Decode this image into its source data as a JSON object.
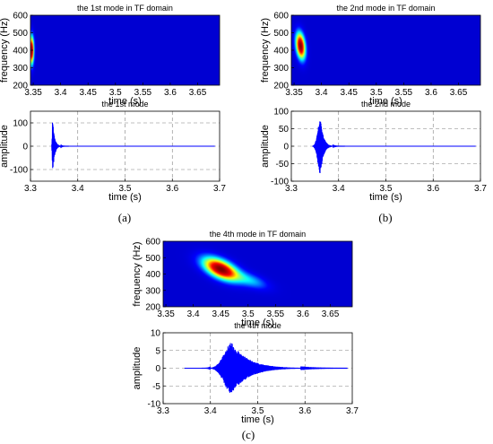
{
  "chart_data": [
    {
      "id": "a_tf",
      "type": "heatmap",
      "title": "the 1st mode in TF domain",
      "xlabel": "time (s)",
      "ylabel": "frequency (Hz)",
      "xlim": [
        3.345,
        3.69
      ],
      "ylim": [
        200,
        600
      ],
      "xticks": [
        3.35,
        3.4,
        3.45,
        3.5,
        3.55,
        3.6,
        3.65
      ],
      "xtick_labels": [
        "3.35",
        "3.4",
        "3.45",
        "3.5",
        "3.55",
        "3.6",
        "3.65"
      ],
      "yticks": [
        200,
        300,
        400,
        500,
        600
      ],
      "ytick_labels": [
        "200",
        "300",
        "400",
        "500",
        "600"
      ],
      "colormap": [
        "#00008f",
        "#0000ff",
        "#00ffff",
        "#ffff00",
        "#ff0000",
        "#800000"
      ],
      "blobs": [
        {
          "t": 3.347,
          "f": 400,
          "t_spread": 0.003,
          "f_spread": 55,
          "slope": 0,
          "peak": 1
        }
      ]
    },
    {
      "id": "a_wave",
      "type": "line",
      "title": "the 1st mode",
      "xlabel": "time (s)",
      "ylabel": "amplitude",
      "xlim": [
        3.3,
        3.7
      ],
      "ylim": [
        -150,
        150
      ],
      "xticks": [
        3.3,
        3.4,
        3.5,
        3.6,
        3.7
      ],
      "xtick_labels": [
        "3.3",
        "3.4",
        "3.5",
        "3.6",
        "3.7"
      ],
      "yticks": [
        -100,
        0,
        100
      ],
      "ytick_labels": [
        "-100",
        "0",
        "100"
      ],
      "grid": true,
      "color": "#0000ff",
      "signal": {
        "start": 3.345,
        "end": 3.69,
        "center": 3.347,
        "amplitude": 120,
        "rise": 0.0012,
        "decay": 0.004,
        "tail_amp": 6,
        "tail_len": 0.012
      }
    },
    {
      "id": "b_tf",
      "type": "heatmap",
      "title": "the 2nd mode in TF domain",
      "xlabel": "time (s)",
      "ylabel": "frequency (Hz)",
      "xlim": [
        3.345,
        3.69
      ],
      "ylim": [
        200,
        600
      ],
      "xticks": [
        3.35,
        3.4,
        3.45,
        3.5,
        3.55,
        3.6,
        3.65
      ],
      "xtick_labels": [
        "3.35",
        "3.4",
        "3.45",
        "3.5",
        "3.55",
        "3.6",
        "3.65"
      ],
      "yticks": [
        200,
        300,
        400,
        500,
        600
      ],
      "ytick_labels": [
        "200",
        "300",
        "400",
        "500",
        "600"
      ],
      "colormap": [
        "#00008f",
        "#0000ff",
        "#00ffff",
        "#ffff00",
        "#ff0000",
        "#800000"
      ],
      "blobs": [
        {
          "t": 3.362,
          "f": 425,
          "t_spread": 0.006,
          "f_spread": 50,
          "slope": -2400,
          "peak": 1
        }
      ]
    },
    {
      "id": "b_wave",
      "type": "line",
      "title": "the 2nd mode",
      "xlabel": "time (s)",
      "ylabel": "amplitude",
      "xlim": [
        3.3,
        3.7
      ],
      "ylim": [
        -100,
        100
      ],
      "xticks": [
        3.3,
        3.4,
        3.5,
        3.6,
        3.7
      ],
      "xtick_labels": [
        "3.3",
        "3.4",
        "3.5",
        "3.6",
        "3.7"
      ],
      "yticks": [
        -100,
        -50,
        0,
        50,
        100
      ],
      "ytick_labels": [
        "-100",
        "-50",
        "0",
        "50",
        "100"
      ],
      "grid": true,
      "color": "#0000ff",
      "signal": {
        "start": 3.345,
        "end": 3.69,
        "center": 3.362,
        "amplitude": 82,
        "rise": 0.008,
        "decay": 0.006,
        "tail_amp": 0,
        "tail_len": 0
      }
    },
    {
      "id": "c_tf",
      "type": "heatmap",
      "title": "the 4th mode in TF domain",
      "xlabel": "time (s)",
      "ylabel": "frequency (Hz)",
      "xlim": [
        3.345,
        3.69
      ],
      "ylim": [
        200,
        600
      ],
      "xticks": [
        3.35,
        3.4,
        3.45,
        3.5,
        3.55,
        3.6,
        3.65
      ],
      "xtick_labels": [
        "3.35",
        "3.4",
        "3.45",
        "3.5",
        "3.55",
        "3.6",
        "3.65"
      ],
      "yticks": [
        200,
        300,
        400,
        500,
        600
      ],
      "ytick_labels": [
        "200",
        "300",
        "400",
        "500",
        "600"
      ],
      "colormap": [
        "#00008f",
        "#0000ff",
        "#00ffff",
        "#ffff00",
        "#ff0000",
        "#800000"
      ],
      "blobs": [
        {
          "t": 3.45,
          "f": 430,
          "t_spread": 0.022,
          "f_spread": 40,
          "slope": -1200,
          "peak": 1
        },
        {
          "t": 3.505,
          "f": 360,
          "t_spread": 0.022,
          "f_spread": 30,
          "slope": -1000,
          "peak": 0.25
        }
      ]
    },
    {
      "id": "c_wave",
      "type": "line",
      "title": "the 4th mode",
      "xlabel": "time (s)",
      "ylabel": "amplitude",
      "xlim": [
        3.3,
        3.7
      ],
      "ylim": [
        -10,
        10
      ],
      "xticks": [
        3.3,
        3.4,
        3.5,
        3.6,
        3.7
      ],
      "xtick_labels": [
        "3.3",
        "3.4",
        "3.5",
        "3.6",
        "3.7"
      ],
      "yticks": [
        -10,
        -5,
        0,
        5,
        10
      ],
      "ytick_labels": [
        "-10",
        "-5",
        "0",
        "5",
        "10"
      ],
      "grid": true,
      "color": "#0000ff",
      "signal": {
        "start": 3.345,
        "end": 3.69,
        "center": 3.445,
        "amplitude": 7.2,
        "rise": 0.022,
        "decay": 0.035,
        "tail_amp": 0.6,
        "tail_len": 0.06
      }
    }
  ],
  "panel_labels": [
    "(a)",
    "(b)",
    "(c)"
  ]
}
